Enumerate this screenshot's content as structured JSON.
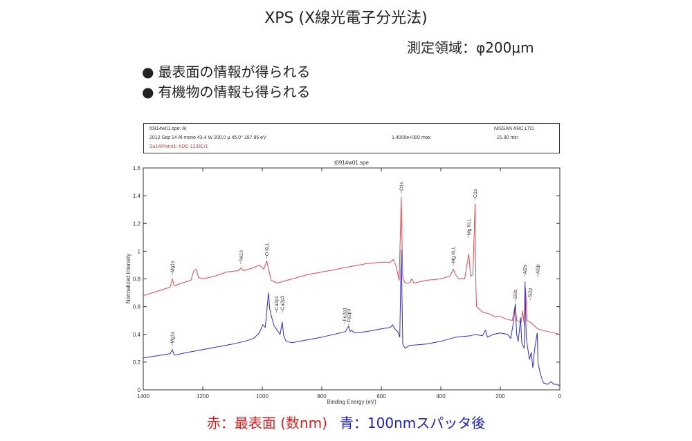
{
  "header": {
    "title": "XPS (X線光電子分光法)",
    "area_label": "測定領域：φ200μm"
  },
  "bullets": [
    {
      "dot": "●",
      "text": "最表面の情報が得られる"
    },
    {
      "dot": "●",
      "text": "有機物の情報も得られる"
    }
  ],
  "info": {
    "file": "t0914w01.spe: Al",
    "params": "2012 Sep 14  Al mono  43.4 W  200.0 μ  45.0°    187.85 eV",
    "max": "1.4000e+000 max",
    "company": "NISSAN ARC,LTD.",
    "time": "21.90 min",
    "sample": "Su14/Point1: ADC-12/DC/1"
  },
  "caption": {
    "red": "赤：最表面 (数nm)",
    "blue": "青：100nmスパッタ後"
  },
  "colors": {
    "red": "#e8474a",
    "blue": "#2a2ae0"
  },
  "chart_data": {
    "type": "line",
    "title": "t0914w01.spe",
    "xlabel": "Binding Energy (eV)",
    "ylabel": "Normalized Intensity",
    "xlim": [
      1400,
      0
    ],
    "ylim": [
      0,
      1.6
    ],
    "x_ticks": [
      "1400",
      "1200",
      "1000",
      "800",
      "600",
      "400",
      "200",
      "0"
    ],
    "y_ticks": [
      "0",
      "0.2",
      "0.4",
      "0.6",
      "0.8",
      "1",
      "1.2",
      "1.4",
      "1.6"
    ],
    "grid": false,
    "series": [
      {
        "color": "#e8474a",
        "points": [
          [
            1400,
            0.68
          ],
          [
            1370,
            0.7
          ],
          [
            1340,
            0.72
          ],
          [
            1310,
            0.74
          ],
          [
            1302,
            0.8
          ],
          [
            1296,
            0.75
          ],
          [
            1270,
            0.77
          ],
          [
            1240,
            0.79
          ],
          [
            1230,
            0.86
          ],
          [
            1222,
            0.87
          ],
          [
            1214,
            0.81
          ],
          [
            1200,
            0.8
          ],
          [
            1160,
            0.82
          ],
          [
            1120,
            0.85
          ],
          [
            1080,
            0.86
          ],
          [
            1072,
            0.88
          ],
          [
            1064,
            0.86
          ],
          [
            1030,
            0.88
          ],
          [
            1010,
            0.9
          ],
          [
            995,
            0.87
          ],
          [
            985,
            0.93
          ],
          [
            978,
            0.86
          ],
          [
            970,
            0.79
          ],
          [
            950,
            0.77
          ],
          [
            900,
            0.8
          ],
          [
            850,
            0.83
          ],
          [
            800,
            0.85
          ],
          [
            750,
            0.87
          ],
          [
            700,
            0.89
          ],
          [
            650,
            0.91
          ],
          [
            600,
            0.92
          ],
          [
            570,
            0.92
          ],
          [
            560,
            0.94
          ],
          [
            550,
            0.89
          ],
          [
            540,
            0.79
          ],
          [
            533,
            1.39
          ],
          [
            528,
            0.81
          ],
          [
            520,
            0.77
          ],
          [
            505,
            0.77
          ],
          [
            498,
            0.8
          ],
          [
            490,
            0.77
          ],
          [
            450,
            0.79
          ],
          [
            400,
            0.8
          ],
          [
            370,
            0.82
          ],
          [
            358,
            0.87
          ],
          [
            350,
            0.83
          ],
          [
            340,
            0.8
          ],
          [
            320,
            0.8
          ],
          [
            306,
            0.98
          ],
          [
            300,
            0.82
          ],
          [
            292,
            0.83
          ],
          [
            285,
            1.34
          ],
          [
            282,
            0.75
          ],
          [
            280,
            0.6
          ],
          [
            260,
            0.56
          ],
          [
            240,
            0.55
          ],
          [
            220,
            0.53
          ],
          [
            200,
            0.53
          ],
          [
            180,
            0.51
          ],
          [
            160,
            0.5
          ],
          [
            150,
            0.61
          ],
          [
            145,
            0.5
          ],
          [
            130,
            0.49
          ],
          [
            125,
            0.57
          ],
          [
            119,
            0.46
          ],
          [
            115,
            0.73
          ],
          [
            110,
            0.5
          ],
          [
            100,
            0.49
          ],
          [
            90,
            0.47
          ],
          [
            75,
            0.44
          ],
          [
            60,
            0.43
          ],
          [
            40,
            0.42
          ],
          [
            20,
            0.41
          ],
          [
            0,
            0.4
          ]
        ]
      },
      {
        "color": "#2a2ae0",
        "points": [
          [
            1400,
            0.23
          ],
          [
            1370,
            0.24
          ],
          [
            1340,
            0.25
          ],
          [
            1310,
            0.26
          ],
          [
            1302,
            0.29
          ],
          [
            1296,
            0.25
          ],
          [
            1250,
            0.27
          ],
          [
            1200,
            0.29
          ],
          [
            1150,
            0.31
          ],
          [
            1100,
            0.33
          ],
          [
            1060,
            0.35
          ],
          [
            1030,
            0.37
          ],
          [
            1010,
            0.41
          ],
          [
            998,
            0.47
          ],
          [
            990,
            0.45
          ],
          [
            985,
            0.56
          ],
          [
            979,
            0.7
          ],
          [
            975,
            0.58
          ],
          [
            968,
            0.52
          ],
          [
            960,
            0.46
          ],
          [
            950,
            0.43
          ],
          [
            940,
            0.4
          ],
          [
            933,
            0.49
          ],
          [
            928,
            0.39
          ],
          [
            920,
            0.35
          ],
          [
            900,
            0.34
          ],
          [
            850,
            0.36
          ],
          [
            800,
            0.38
          ],
          [
            760,
            0.4
          ],
          [
            720,
            0.42
          ],
          [
            710,
            0.46
          ],
          [
            705,
            0.42
          ],
          [
            700,
            0.43
          ],
          [
            690,
            0.41
          ],
          [
            650,
            0.42
          ],
          [
            600,
            0.44
          ],
          [
            570,
            0.45
          ],
          [
            562,
            0.47
          ],
          [
            555,
            0.44
          ],
          [
            545,
            0.42
          ],
          [
            538,
            0.38
          ],
          [
            533,
            1.01
          ],
          [
            528,
            0.33
          ],
          [
            520,
            0.3
          ],
          [
            505,
            0.32
          ],
          [
            450,
            0.33
          ],
          [
            400,
            0.35
          ],
          [
            350,
            0.38
          ],
          [
            300,
            0.39
          ],
          [
            285,
            0.4
          ],
          [
            260,
            0.39
          ],
          [
            250,
            0.43
          ],
          [
            243,
            0.38
          ],
          [
            225,
            0.4
          ],
          [
            200,
            0.41
          ],
          [
            175,
            0.4
          ],
          [
            165,
            0.37
          ],
          [
            155,
            0.5
          ],
          [
            150,
            0.62
          ],
          [
            145,
            0.4
          ],
          [
            140,
            0.35
          ],
          [
            135,
            0.45
          ],
          [
            132,
            0.52
          ],
          [
            128,
            0.34
          ],
          [
            120,
            0.3
          ],
          [
            117,
            0.78
          ],
          [
            113,
            0.38
          ],
          [
            108,
            0.3
          ],
          [
            102,
            0.22
          ],
          [
            96,
            0.27
          ],
          [
            91,
            0.16
          ],
          [
            85,
            0.29
          ],
          [
            80,
            0.36
          ],
          [
            76,
            0.41
          ],
          [
            73,
            0.19
          ],
          [
            65,
            0.11
          ],
          [
            55,
            0.05
          ],
          [
            40,
            0.04
          ],
          [
            30,
            0.06
          ],
          [
            20,
            0.04
          ],
          [
            10,
            0.04
          ],
          [
            0,
            0.03
          ]
        ]
      }
    ],
    "annotations": [
      {
        "text": "~Mg1s",
        "x": 1302,
        "y": 0.81
      },
      {
        "text": "~Na1s",
        "x": 1072,
        "y": 0.89
      },
      {
        "text": "~O KLL",
        "x": 985,
        "y": 0.93
      },
      {
        "text": "~O1s",
        "x": 533,
        "y": 1.4
      },
      {
        "text": "~Mg KLL",
        "x": 358,
        "y": 0.88
      },
      {
        "text": "~Mg KLL",
        "x": 306,
        "y": 1.08
      },
      {
        "text": "~C1s",
        "x": 285,
        "y": 1.35
      },
      {
        "text": "~Al2s",
        "x": 117,
        "y": 0.8
      },
      {
        "text": "~Al2p",
        "x": 75,
        "y": 0.8
      },
      {
        "text": "~Si2s",
        "x": 150,
        "y": 0.62
      },
      {
        "text": "~Si2p",
        "x": 100,
        "y": 0.63
      },
      {
        "text": "~Mg1s",
        "x": 1302,
        "y": 0.3
      },
      {
        "text": "~Cu2p1",
        "x": 952,
        "y": 0.54
      },
      {
        "text": "~Cu2p3",
        "x": 932,
        "y": 0.54
      },
      {
        "text": "~Fe2p1",
        "x": 723,
        "y": 0.46
      },
      {
        "text": "~Fe2p3",
        "x": 709,
        "y": 0.45
      }
    ]
  }
}
